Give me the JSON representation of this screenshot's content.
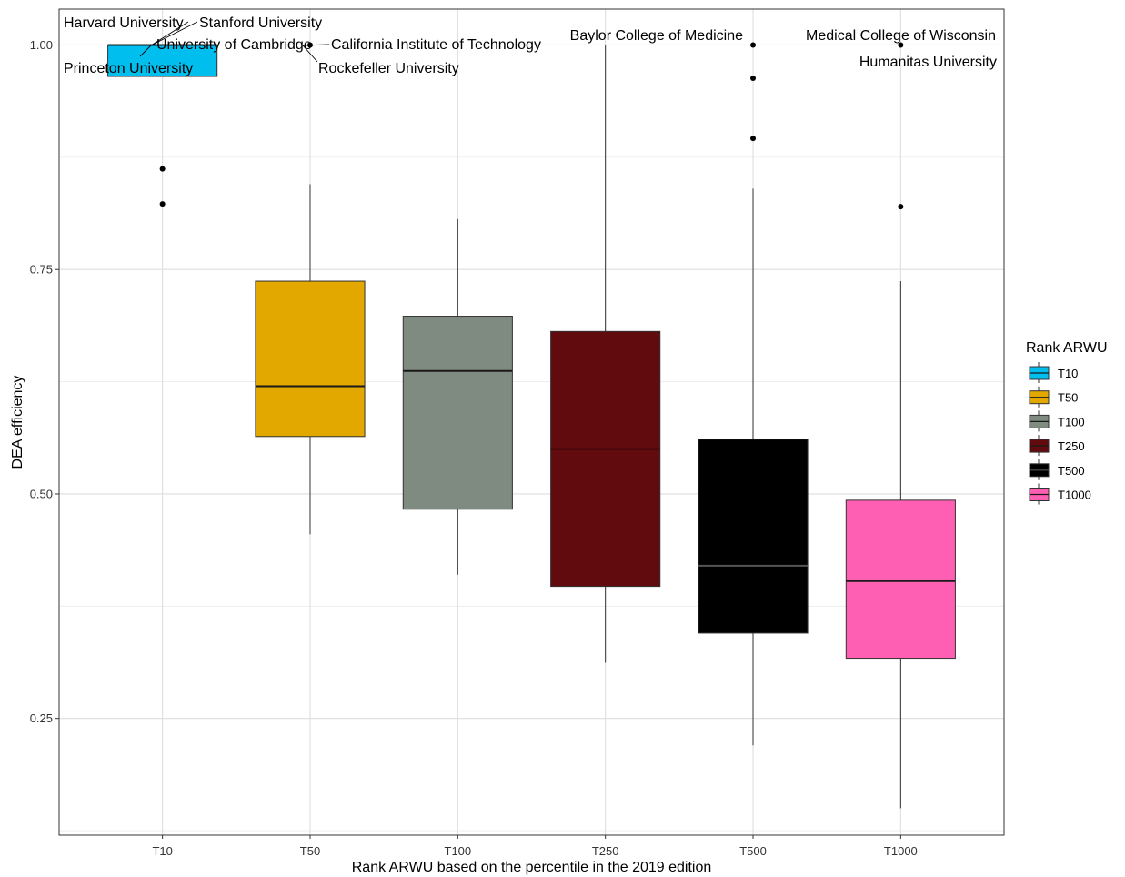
{
  "chart_data": {
    "type": "box",
    "xlabel": "Rank ARWU based on the percentile in the 2019 edition",
    "ylabel": "DEA efficiency",
    "ylim": [
      0.12,
      1.04
    ],
    "yticks": [
      "0.25",
      "0.50",
      "0.75",
      "1.00"
    ],
    "grid": true,
    "legend": {
      "title": "Rank ARWU",
      "placement": "right"
    },
    "categories": [
      "T10",
      "T50",
      "T100",
      "T250",
      "T500",
      "T1000"
    ],
    "series": [
      {
        "name": "T10",
        "color": "#00BFEE",
        "min": 0.965,
        "q1": 0.965,
        "median": 1.0,
        "q3": 1.0,
        "max": 1.0,
        "outliers": [
          0.862,
          0.823
        ]
      },
      {
        "name": "T50",
        "color": "#E3A800",
        "min": 0.455,
        "q1": 0.564,
        "median": 0.62,
        "q3": 0.737,
        "max": 0.845,
        "outliers": [
          1.0
        ]
      },
      {
        "name": "T100",
        "color": "#7F8B80",
        "min": 0.41,
        "q1": 0.483,
        "median": 0.637,
        "q3": 0.698,
        "max": 0.806,
        "outliers": []
      },
      {
        "name": "T250",
        "color": "#610B0F",
        "min": 0.312,
        "q1": 0.397,
        "median": 0.55,
        "q3": 0.681,
        "max": 1.0,
        "outliers": []
      },
      {
        "name": "T500",
        "color": "#000000",
        "min": 0.22,
        "q1": 0.345,
        "median": 0.42,
        "q3": 0.561,
        "max": 0.84,
        "outliers": [
          1.0,
          0.963,
          0.896
        ]
      },
      {
        "name": "T1000",
        "color": "#FF5FB2",
        "min": 0.15,
        "q1": 0.317,
        "median": 0.403,
        "q3": 0.493,
        "max": 0.737,
        "outliers": [
          1.0,
          0.82
        ]
      }
    ],
    "annotations": [
      {
        "label": "Harvard University"
      },
      {
        "label": "Stanford University"
      },
      {
        "label": "University of Cambridge"
      },
      {
        "label": "Princeton University"
      },
      {
        "label": "California Institute of Technology"
      },
      {
        "label": "Rockefeller University"
      },
      {
        "label": "Baylor College of Medicine"
      },
      {
        "label": "Medical College of Wisconsin"
      },
      {
        "label": "Humanitas University"
      }
    ]
  }
}
